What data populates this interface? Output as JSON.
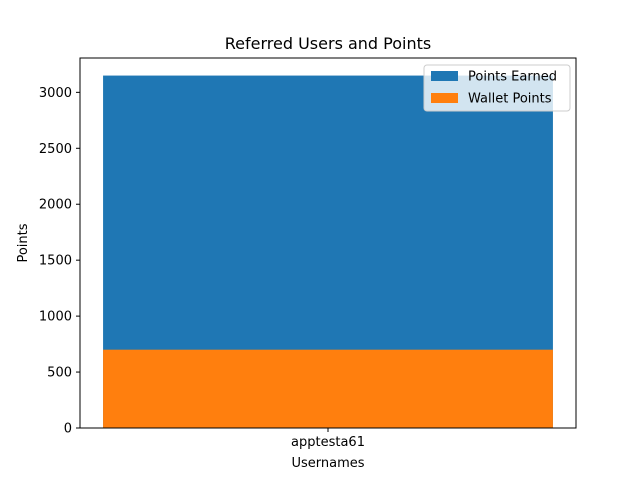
{
  "chart_data": {
    "type": "bar",
    "stacking": "overlay",
    "title": "Referred Users and Points",
    "xlabel": "Usernames",
    "ylabel": "Points",
    "categories": [
      "apptesta61"
    ],
    "ylim": [
      0,
      3307
    ],
    "yticks": [
      0,
      500,
      1000,
      1500,
      2000,
      2500,
      3000
    ],
    "grid": false,
    "legend_position": "top-right",
    "series": [
      {
        "name": "Points Earned",
        "values": [
          3150
        ],
        "color": "#1f77b4"
      },
      {
        "name": "Wallet Points",
        "values": [
          700
        ],
        "color": "#ff7f0e"
      }
    ]
  }
}
